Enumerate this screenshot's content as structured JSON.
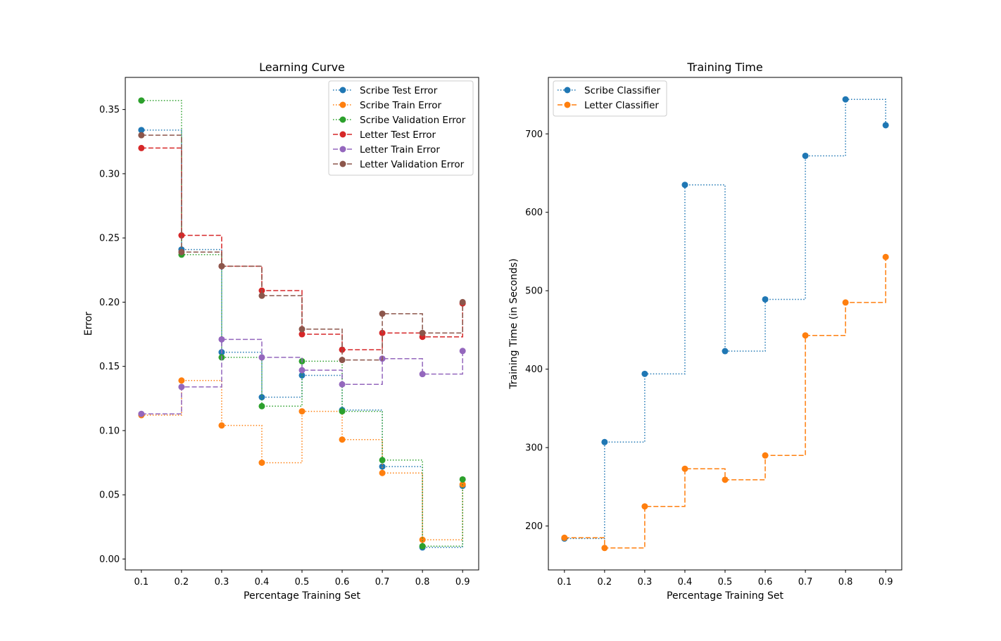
{
  "chart_data": [
    {
      "type": "line",
      "drawstyle": "steps-post",
      "title": "Learning Curve",
      "xlabel": "Percentage Training Set",
      "ylabel": "Error",
      "xlim": [
        0.06,
        0.94
      ],
      "ylim": [
        -0.0085,
        0.375
      ],
      "xticks": [
        0.1,
        0.2,
        0.3,
        0.4,
        0.5,
        0.6,
        0.7,
        0.8,
        0.9
      ],
      "xtick_labels": [
        "0.1",
        "0.2",
        "0.3",
        "0.4",
        "0.5",
        "0.6",
        "0.7",
        "0.8",
        "0.9"
      ],
      "yticks": [
        0.0,
        0.05,
        0.1,
        0.15,
        0.2,
        0.25,
        0.3,
        0.35
      ],
      "ytick_labels": [
        "0.00",
        "0.05",
        "0.10",
        "0.15",
        "0.20",
        "0.25",
        "0.30",
        "0.35"
      ],
      "legend_position": "top-right",
      "x": [
        0.1,
        0.2,
        0.3,
        0.4,
        0.5,
        0.6,
        0.7,
        0.8,
        0.9
      ],
      "series": [
        {
          "name": "Scribe Test Error",
          "color": "#1f77b4",
          "dash": "dotted",
          "values": [
            0.334,
            0.241,
            0.161,
            0.126,
            0.143,
            0.116,
            0.072,
            0.009,
            0.057
          ]
        },
        {
          "name": "Scribe Train Error",
          "color": "#ff7f0e",
          "dash": "dotted",
          "values": [
            0.112,
            0.139,
            0.104,
            0.075,
            0.115,
            0.093,
            0.067,
            0.015,
            0.058
          ]
        },
        {
          "name": "Scribe Validation Error",
          "color": "#2ca02c",
          "dash": "dotted",
          "values": [
            0.357,
            0.237,
            0.157,
            0.119,
            0.154,
            0.115,
            0.077,
            0.01,
            0.062
          ]
        },
        {
          "name": "Letter Test Error",
          "color": "#d62728",
          "dash": "dashed",
          "values": [
            0.32,
            0.252,
            0.228,
            0.209,
            0.175,
            0.163,
            0.176,
            0.173,
            0.199
          ]
        },
        {
          "name": "Letter Train Error",
          "color": "#9467bd",
          "dash": "dashed",
          "values": [
            0.113,
            0.134,
            0.171,
            0.157,
            0.147,
            0.136,
            0.156,
            0.144,
            0.162
          ]
        },
        {
          "name": "Letter Validation Error",
          "color": "#8c564b",
          "dash": "dashed",
          "values": [
            0.33,
            0.239,
            0.228,
            0.205,
            0.179,
            0.155,
            0.191,
            0.176,
            0.2
          ]
        }
      ]
    },
    {
      "type": "line",
      "drawstyle": "steps-post",
      "title": "Training Time",
      "xlabel": "Percentage Training Set",
      "ylabel": "Training Time (in Seconds)",
      "xlim": [
        0.06,
        0.94
      ],
      "ylim": [
        144,
        772
      ],
      "xticks": [
        0.1,
        0.2,
        0.3,
        0.4,
        0.5,
        0.6,
        0.7,
        0.8,
        0.9
      ],
      "xtick_labels": [
        "0.1",
        "0.2",
        "0.3",
        "0.4",
        "0.5",
        "0.6",
        "0.7",
        "0.8",
        "0.9"
      ],
      "yticks": [
        200,
        300,
        400,
        500,
        600,
        700
      ],
      "ytick_labels": [
        "200",
        "300",
        "400",
        "500",
        "600",
        "700"
      ],
      "legend_position": "top-left",
      "x": [
        0.1,
        0.2,
        0.3,
        0.4,
        0.5,
        0.6,
        0.7,
        0.8,
        0.9
      ],
      "series": [
        {
          "name": "Scribe Classifier",
          "color": "#1f77b4",
          "dash": "dotted",
          "values": [
            184,
            307,
            394,
            635,
            423,
            489,
            672,
            744,
            711
          ]
        },
        {
          "name": "Letter Classifier",
          "color": "#ff7f0e",
          "dash": "dashed",
          "values": [
            185,
            172,
            225,
            273,
            259,
            290,
            443,
            485,
            543
          ]
        }
      ]
    }
  ]
}
